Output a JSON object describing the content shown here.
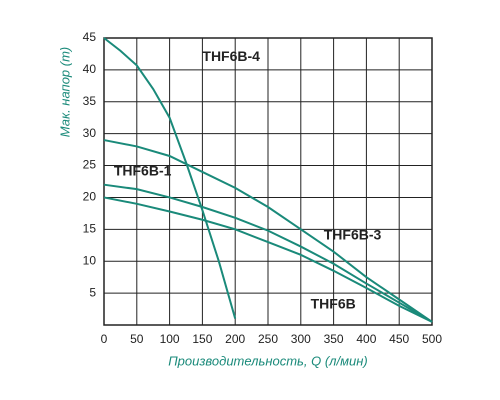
{
  "chart_data": {
    "type": "line",
    "x_label": "Производительность, Q (л/мин)",
    "y_label": "Мак. напор (m)",
    "xlim": [
      0,
      500
    ],
    "xticks": [
      0,
      50,
      100,
      150,
      200,
      250,
      300,
      350,
      400,
      450,
      500
    ],
    "ylim": [
      0,
      45
    ],
    "yticks": [
      5,
      10,
      15,
      20,
      25,
      30,
      35,
      40,
      45
    ],
    "grid": true,
    "series": [
      {
        "name": "THF6B-4",
        "color": "#1a8a7a",
        "x": [
          0,
          25,
          50,
          75,
          100,
          125,
          150,
          175,
          200
        ],
        "values": [
          45,
          43,
          40.7,
          37,
          32.5,
          25.5,
          18,
          10,
          1
        ]
      },
      {
        "name": "THF6B-1",
        "color": "#1a8a7a",
        "x": [
          0,
          50,
          100,
          150,
          200,
          250,
          300,
          350,
          400,
          450,
          500
        ],
        "values": [
          22,
          21.3,
          20,
          18.5,
          16.8,
          14.8,
          12.3,
          9.6,
          6.5,
          3.5,
          0.5
        ]
      },
      {
        "name": "THF6B-3",
        "color": "#1a8a7a",
        "x": [
          0,
          50,
          100,
          150,
          200,
          250,
          300,
          350,
          400,
          450,
          500
        ],
        "values": [
          29,
          28,
          26.5,
          24,
          21.5,
          18.5,
          15,
          11.5,
          7.5,
          4,
          0.5
        ]
      },
      {
        "name": "THF6B",
        "color": "#1a8a7a",
        "x": [
          0,
          50,
          100,
          150,
          200,
          250,
          300,
          350,
          400,
          450,
          500
        ],
        "values": [
          20,
          19,
          17.8,
          16.5,
          15,
          13,
          11,
          8.5,
          5.8,
          3,
          0.5
        ]
      }
    ]
  }
}
